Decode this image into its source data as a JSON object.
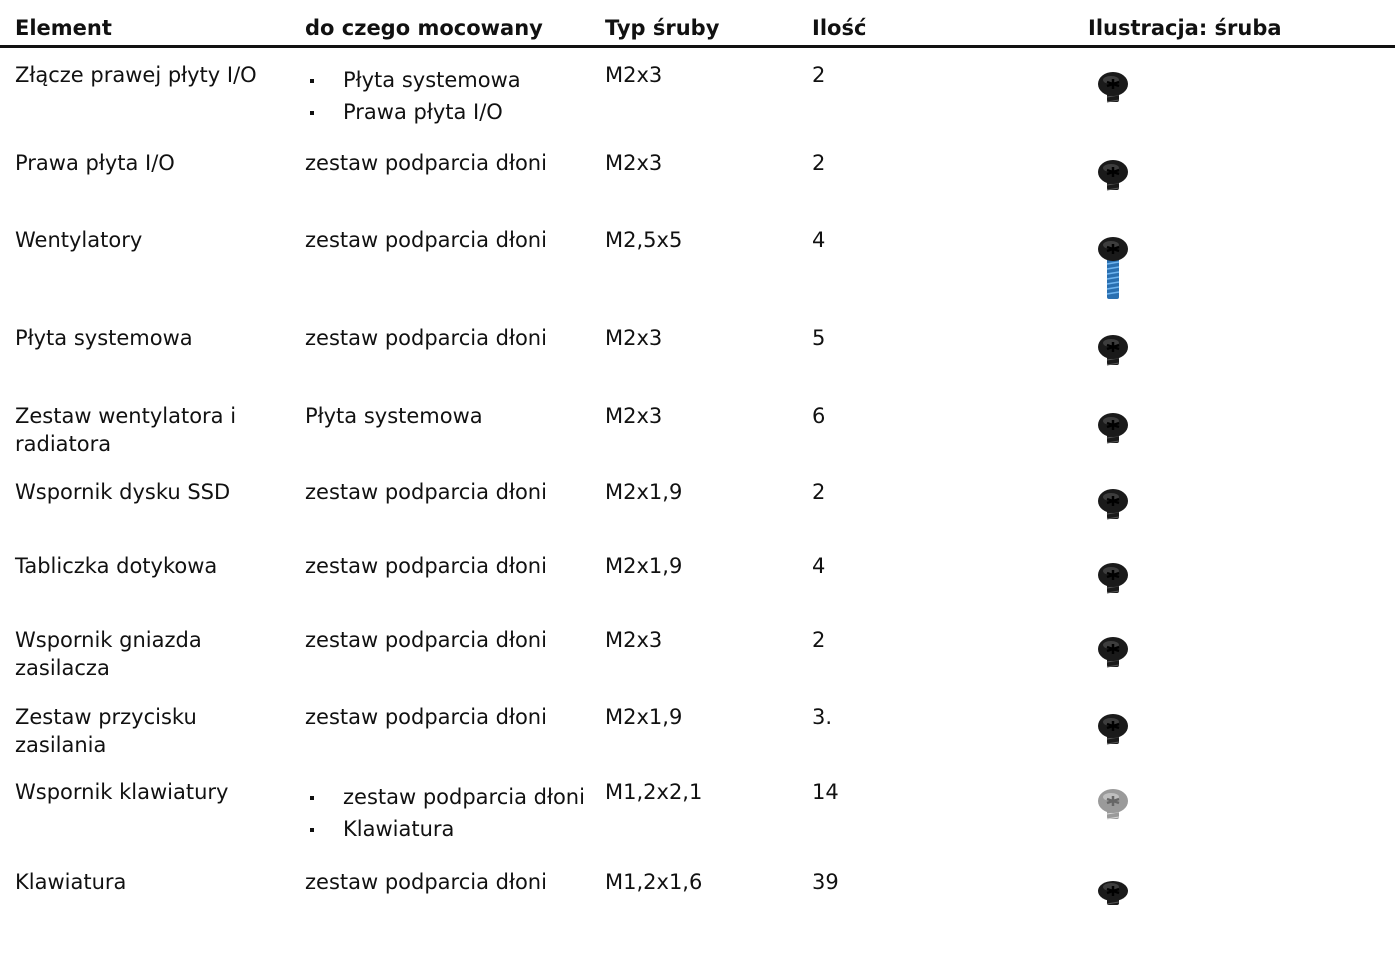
{
  "table": {
    "header": [
      "Element",
      "do czego mocowany",
      "Typ śruby",
      "Ilość",
      "Ilustracja: śruba"
    ],
    "rows": [
      [
        "Złącze prawej płyty I/O",
        [
          "Płyta systemowa",
          "Prawa płyta I/O"
        ],
        "M2x3",
        "2"
      ],
      [
        "Prawa płyta I/O",
        "zestaw podparcia dłoni",
        "M2x3",
        "2"
      ],
      [
        "Wentylatory",
        "zestaw podparcia dłoni",
        "M2,5x5",
        "4"
      ],
      [
        "Płyta systemowa",
        "zestaw podparcia dłoni",
        "M2x3",
        "5"
      ],
      [
        "Zestaw wentylatora i radiatora",
        "Płyta systemowa",
        "M2x3",
        "6"
      ],
      [
        "Wspornik dysku SSD",
        "zestaw podparcia dłoni",
        "M2x1,9",
        "2"
      ],
      [
        "Tabliczka dotykowa",
        "zestaw podparcia dłoni",
        "M2x1,9",
        "4"
      ],
      [
        "Wspornik gniazda zasilacza",
        "zestaw podparcia dłoni",
        "M2x3",
        "2"
      ],
      [
        "Zestaw przycisku zasilania",
        "zestaw podparcia dłoni",
        "M2x1,9",
        "3."
      ],
      [
        "Wspornik klawiatury",
        [
          "zestaw podparcia dłoni",
          "Klawiatura"
        ],
        "M1,2x2,1",
        "14"
      ],
      [
        "Klawiatura",
        "zestaw podparcia dłoni",
        "M1,2x1,6",
        "39"
      ]
    ]
  }
}
